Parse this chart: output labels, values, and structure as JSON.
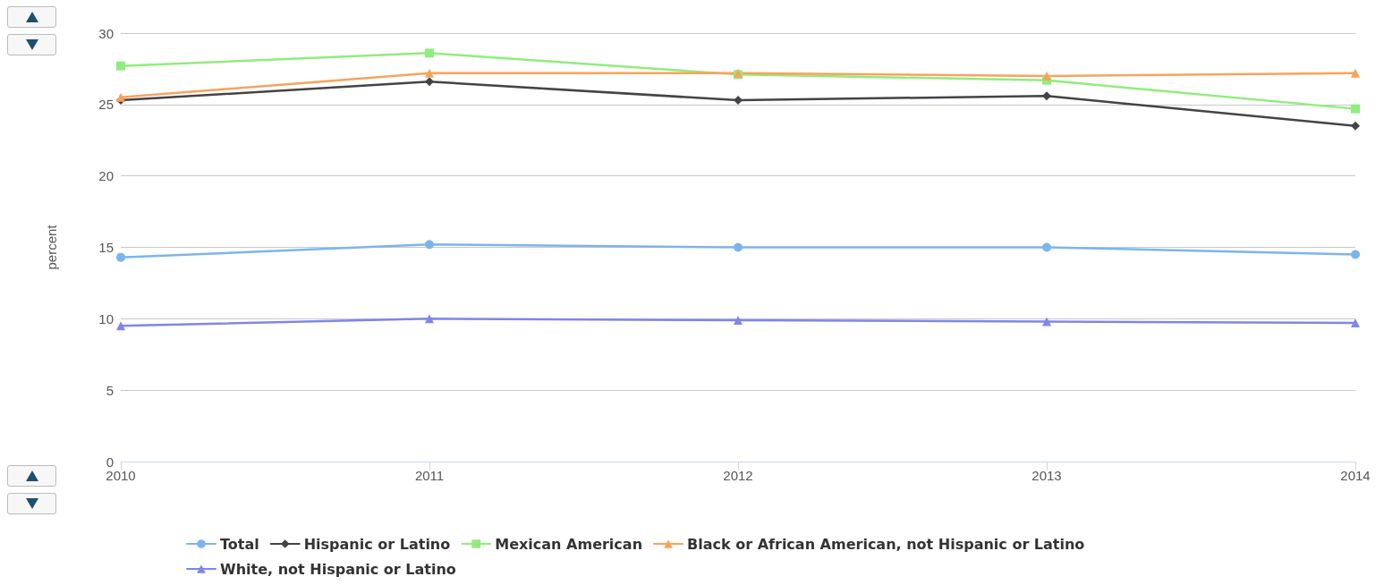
{
  "chart_data": {
    "type": "line",
    "ylabel": "percent",
    "categories": [
      "2010",
      "2011",
      "2012",
      "2013",
      "2014"
    ],
    "series": [
      {
        "name": "Total",
        "color": "#7cb5ec",
        "marker": "circle",
        "values": [
          14.3,
          15.2,
          15.0,
          15.0,
          14.5
        ]
      },
      {
        "name": "Hispanic or Latino",
        "color": "#434348",
        "marker": "diamond",
        "values": [
          25.3,
          26.6,
          25.3,
          25.6,
          23.5
        ]
      },
      {
        "name": "Mexican American",
        "color": "#90ed7d",
        "marker": "square",
        "values": [
          27.7,
          28.6,
          27.1,
          26.7,
          24.7
        ]
      },
      {
        "name": "Black or African American, not Hispanic or Latino",
        "color": "#f7a35c",
        "marker": "triangle",
        "values": [
          25.5,
          27.2,
          27.2,
          27.0,
          27.2
        ]
      },
      {
        "name": "White, not Hispanic or Latino",
        "color": "#8085e9",
        "marker": "triangle",
        "values": [
          9.5,
          10.0,
          9.9,
          9.8,
          9.7
        ]
      }
    ],
    "ylim": [
      0,
      30
    ],
    "yticks": [
      0,
      5,
      10,
      15,
      20,
      25,
      30
    ],
    "grid": "y",
    "legend": "bottom"
  }
}
